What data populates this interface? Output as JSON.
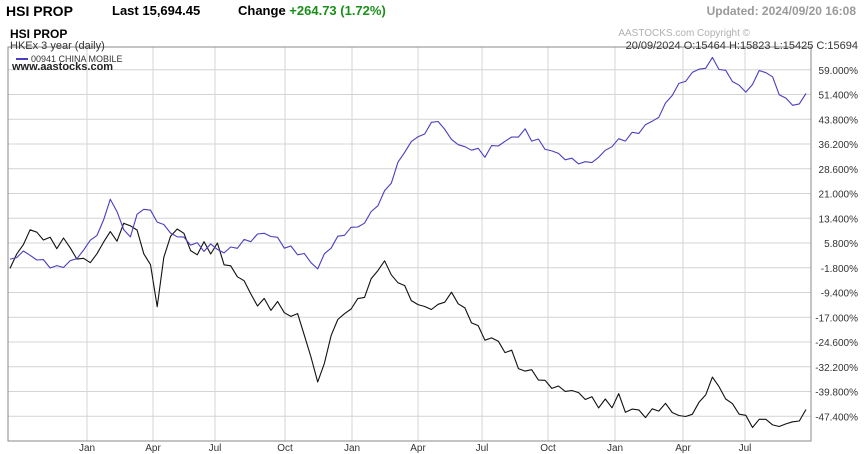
{
  "header": {
    "title": "HSI PROP",
    "last_label": "Last",
    "last_value": "15,694.45",
    "change_label": "Change",
    "change_value": "+264.73 (1.72%)",
    "change_color": "#1a8f1a",
    "updated": "Updated: 2024/09/20 16:08"
  },
  "chart_data": {
    "type": "line",
    "title": "HSI PROP",
    "subtitle": "HKEx  3 year (daily)",
    "ohlc_line": "20/09/2024   O:15464  H:15823  L:15425  C:15694",
    "watermark": "www.aastocks.com",
    "copyright": "AASTOCKS.com Copyright ©",
    "legend": {
      "placement": "top-left",
      "entries": [
        "00941 CHINA MOBILE"
      ]
    },
    "grid": true,
    "x_ticks": [
      "Jan",
      "Apr",
      "Jul",
      "Oct",
      "Jan",
      "Apr",
      "Jul",
      "Oct",
      "Jan",
      "Apr",
      "Jul"
    ],
    "y_ticks": [
      "59.000%",
      "51.400%",
      "43.800%",
      "36.200%",
      "28.600%",
      "21.000%",
      "13.400%",
      "5.800%",
      "-1.800%",
      "-9.400%",
      "-17.000%",
      "-24.600%",
      "-32.200%",
      "-39.800%",
      "-47.400%"
    ],
    "y_min": -55,
    "y_max": 66,
    "series": [
      {
        "name": "HSI PROP",
        "color": "#111111",
        "values": [
          -2,
          2,
          6,
          9,
          10,
          6,
          8,
          4,
          7,
          5,
          0,
          2,
          -1,
          3,
          6,
          9,
          7,
          11,
          12,
          9,
          3,
          -1,
          -14,
          2,
          7,
          11,
          8,
          4,
          2,
          6,
          3,
          5,
          0,
          -2,
          -4,
          -6,
          -10,
          -13,
          -12,
          -14,
          -13,
          -15,
          -17,
          -16,
          -22,
          -30,
          -36,
          -32,
          -22,
          -18,
          -16,
          -14,
          -12,
          -10,
          -6,
          -2,
          0,
          -4,
          -6,
          -8,
          -11,
          -14,
          -13,
          -15,
          -13,
          -12,
          -10,
          -12,
          -15,
          -18,
          -20,
          -24,
          -23,
          -25,
          -27,
          -28,
          -32,
          -34,
          -33,
          -36,
          -37,
          -38,
          -39,
          -39,
          -40,
          -40,
          -42,
          -42,
          -44,
          -43,
          -44,
          -41,
          -46,
          -45,
          -46,
          -47,
          -46,
          -45,
          -44,
          -46,
          -47,
          -48,
          -46,
          -44,
          -40,
          -36,
          -38,
          -42,
          -44,
          -46,
          -48,
          -50,
          -49,
          -48,
          -50,
          -51,
          -49,
          -50,
          -48,
          -46
        ]
      },
      {
        "name": "00941 CHINA MOBILE",
        "color": "#4a3fbf",
        "values": [
          0,
          2,
          3,
          2,
          1,
          0,
          -1,
          -2,
          -1,
          0,
          1,
          4,
          6,
          9,
          12,
          20,
          15,
          10,
          8,
          14,
          17,
          15,
          13,
          11,
          9,
          8,
          7,
          6,
          5,
          4,
          5,
          4,
          3,
          4,
          5,
          6,
          7,
          8,
          9,
          8,
          7,
          5,
          4,
          3,
          2,
          0,
          -2,
          2,
          5,
          7,
          9,
          10,
          11,
          12,
          15,
          18,
          21,
          25,
          30,
          34,
          37,
          38,
          40,
          42,
          44,
          40,
          38,
          36,
          35,
          35,
          34,
          33,
          35,
          36,
          37,
          38,
          39,
          40,
          38,
          37,
          35,
          34,
          33,
          32,
          31,
          31,
          30,
          31,
          32,
          34,
          36,
          37,
          38,
          39,
          40,
          42,
          43,
          45,
          48,
          52,
          54,
          56,
          58,
          59,
          60,
          62,
          60,
          58,
          56,
          54,
          52,
          55,
          58,
          59,
          56,
          52,
          50,
          48,
          49,
          51
        ]
      }
    ]
  }
}
